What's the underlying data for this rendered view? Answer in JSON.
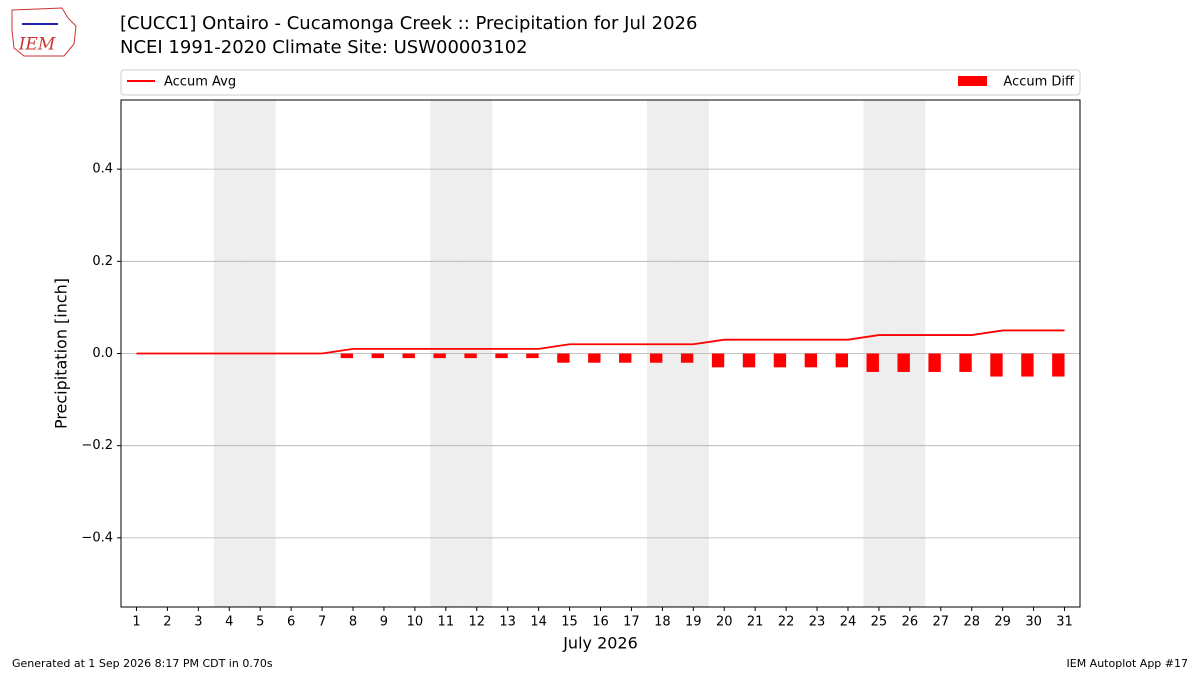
{
  "logo_text": "IEM",
  "footer": {
    "left": "Generated at 1 Sep 2026 8:17 PM CDT in 0.70s",
    "right": "IEM Autoplot App #17"
  },
  "chart_data": {
    "type": "bar",
    "title": "[CUCC1] Ontairo - Cucamonga Creek :: Precipitation for Jul 2026",
    "subtitle": "NCEI 1991-2020 Climate Site: USW00003102",
    "xlabel": "July 2026",
    "ylabel": "Precipitation [inch]",
    "x": [
      1,
      2,
      3,
      4,
      5,
      6,
      7,
      8,
      9,
      10,
      11,
      12,
      13,
      14,
      15,
      16,
      17,
      18,
      19,
      20,
      21,
      22,
      23,
      24,
      25,
      26,
      27,
      28,
      29,
      30,
      31
    ],
    "xticks": [
      1,
      2,
      3,
      4,
      5,
      6,
      7,
      8,
      9,
      10,
      11,
      12,
      13,
      14,
      15,
      16,
      17,
      18,
      19,
      20,
      21,
      22,
      23,
      24,
      25,
      26,
      27,
      28,
      29,
      30,
      31
    ],
    "xlim": [
      0.5,
      31.5
    ],
    "ylim": [
      -0.55,
      0.55
    ],
    "yticks": [
      {
        "value": -0.4,
        "label": "−0.4"
      },
      {
        "value": -0.2,
        "label": "−0.2"
      },
      {
        "value": 0,
        "label": "0.0"
      },
      {
        "value": 0.2,
        "label": "0.2"
      },
      {
        "value": 0.4,
        "label": "0.4"
      }
    ],
    "grid": true,
    "weekend_days": [
      4,
      5,
      11,
      12,
      18,
      19,
      25,
      26
    ],
    "series": [
      {
        "name": "Accum Avg",
        "type": "line",
        "color": "#ff0000",
        "values": [
          0,
          0,
          0,
          0,
          0,
          0,
          0,
          0.01,
          0.01,
          0.01,
          0.01,
          0.01,
          0.01,
          0.01,
          0.02,
          0.02,
          0.02,
          0.02,
          0.02,
          0.03,
          0.03,
          0.03,
          0.03,
          0.03,
          0.04,
          0.04,
          0.04,
          0.04,
          0.05,
          0.05,
          0.05
        ]
      },
      {
        "name": "Accum Diff",
        "type": "bar",
        "color": "#ff0000",
        "values": [
          0,
          0,
          0,
          0,
          0,
          0,
          0,
          -0.01,
          -0.01,
          -0.01,
          -0.01,
          -0.01,
          -0.01,
          -0.01,
          -0.02,
          -0.02,
          -0.02,
          -0.02,
          -0.02,
          -0.03,
          -0.03,
          -0.03,
          -0.03,
          -0.03,
          -0.04,
          -0.04,
          -0.04,
          -0.04,
          -0.05,
          -0.05,
          -0.05
        ]
      }
    ]
  }
}
